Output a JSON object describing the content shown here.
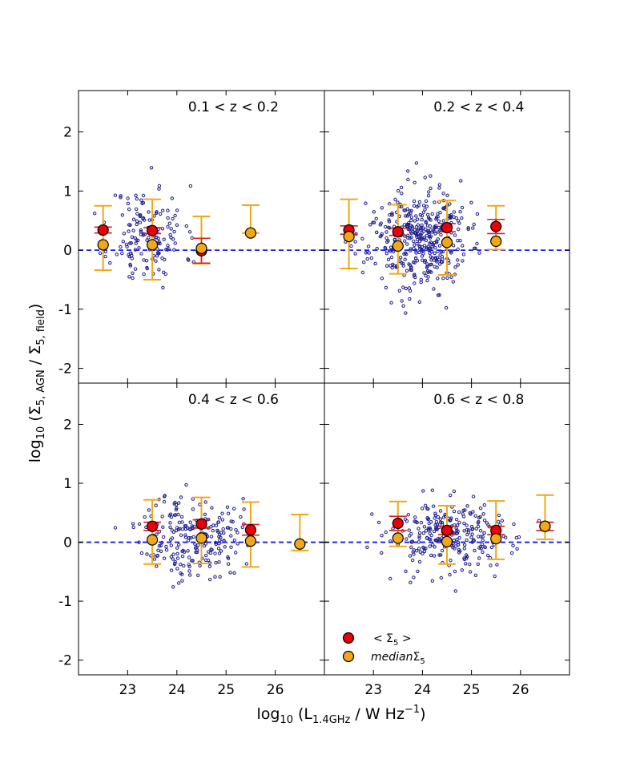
{
  "chart_data": {
    "type": "scatter",
    "layout": "2x2 panels, shared axes",
    "xlabel": {
      "main": "log",
      "sub1": "10",
      "open": " (L",
      "sub2": "1.4GHz",
      "unit": " / W Hz",
      "sup": "−1",
      "close": ")"
    },
    "ylabel": {
      "main": "log",
      "sub1": "10",
      "open": " (Σ",
      "sub2": "5, AGN",
      "mid": " / Σ",
      "sub3": "5, field",
      "close": ")"
    },
    "xlim": [
      22.0,
      27.0
    ],
    "ylim": [
      -2.25,
      2.7
    ],
    "xticks": [
      23,
      24,
      25,
      26
    ],
    "xtick_labels": [
      "23",
      "24",
      "25",
      "26"
    ],
    "yticks": [
      -2,
      -1,
      0,
      1,
      2
    ],
    "ytick_labels": [
      "-2",
      "-1",
      "0",
      "1",
      "2"
    ],
    "reference_line": {
      "y": 0,
      "style": "dashed",
      "color": "#1a1aff"
    },
    "colors": {
      "galaxies": "#1c1c8c",
      "mean": "#e8000b",
      "mean_err": "#d62020",
      "median": "#f0a818",
      "median_err": "#f0a818",
      "ref_line": "#1a1aff"
    },
    "legend": {
      "placement": "lower-left of bottom-right panel",
      "mean": {
        "open": "< Σ",
        "sub": "5",
        "close": " >"
      },
      "median": {
        "italic": "median",
        "sym": "Σ",
        "sub": "5"
      }
    },
    "panels": [
      {
        "title": "0.1  <  z  <  0.2",
        "mean": [
          {
            "x": 22.5,
            "y": 0.34,
            "err": 0.05
          },
          {
            "x": 23.5,
            "y": 0.33,
            "err": 0.05
          },
          {
            "x": 24.5,
            "y": -0.01,
            "err": 0.21
          }
        ],
        "median": [
          {
            "x": 22.5,
            "y": 0.09,
            "lo": -0.34,
            "hi": 0.75
          },
          {
            "x": 23.5,
            "y": 0.09,
            "lo": -0.5,
            "hi": 0.86
          },
          {
            "x": 24.5,
            "y": 0.03,
            "lo": -0.23,
            "hi": 0.57
          },
          {
            "x": 25.5,
            "y": 0.29,
            "lo": 0.29,
            "hi": 0.76
          }
        ],
        "cloud": {
          "n": 150,
          "cx": 23.4,
          "sx": 0.38,
          "cy": 0.25,
          "sy": 0.42,
          "seed": 11
        }
      },
      {
        "title": "0.2  <  z  <  0.4",
        "mean": [
          {
            "x": 22.5,
            "y": 0.34,
            "err": 0.07
          },
          {
            "x": 23.5,
            "y": 0.31,
            "err": 0.06
          },
          {
            "x": 24.5,
            "y": 0.38,
            "err": 0.07
          },
          {
            "x": 25.5,
            "y": 0.4,
            "err": 0.12
          }
        ],
        "median": [
          {
            "x": 22.5,
            "y": 0.23,
            "lo": -0.31,
            "hi": 0.86
          },
          {
            "x": 23.5,
            "y": 0.07,
            "lo": -0.4,
            "hi": 0.77
          },
          {
            "x": 24.5,
            "y": 0.13,
            "lo": -0.42,
            "hi": 0.84
          },
          {
            "x": 25.5,
            "y": 0.15,
            "lo": 0.01,
            "hi": 0.75
          }
        ],
        "cloud": {
          "n": 420,
          "cx": 23.9,
          "sx": 0.5,
          "cy": 0.18,
          "sy": 0.42,
          "seed": 23
        }
      },
      {
        "title": "0.4  <  z  <  0.6",
        "mean": [
          {
            "x": 23.5,
            "y": 0.27,
            "err": 0.07
          },
          {
            "x": 24.5,
            "y": 0.31,
            "err": 0.07
          },
          {
            "x": 25.5,
            "y": 0.21,
            "err": 0.09
          }
        ],
        "median": [
          {
            "x": 23.5,
            "y": 0.04,
            "lo": -0.37,
            "hi": 0.72
          },
          {
            "x": 24.5,
            "y": 0.07,
            "lo": -0.36,
            "hi": 0.76
          },
          {
            "x": 25.5,
            "y": 0.02,
            "lo": -0.42,
            "hi": 0.68
          },
          {
            "x": 26.5,
            "y": -0.03,
            "lo": -0.14,
            "hi": 0.47
          }
        ],
        "cloud": {
          "n": 230,
          "cx": 24.3,
          "sx": 0.5,
          "cy": 0.1,
          "sy": 0.36,
          "seed": 37
        }
      },
      {
        "title": "0.6  <  z  <  0.8",
        "mean": [
          {
            "x": 23.5,
            "y": 0.32,
            "err": 0.12
          },
          {
            "x": 24.5,
            "y": 0.2,
            "err": 0.07
          },
          {
            "x": 25.5,
            "y": 0.2,
            "err": 0.07
          },
          {
            "x": 26.5,
            "y": 0.27,
            "err": 0.07
          }
        ],
        "median": [
          {
            "x": 23.5,
            "y": 0.07,
            "lo": -0.07,
            "hi": 0.69
          },
          {
            "x": 24.5,
            "y": 0.01,
            "lo": -0.37,
            "hi": 0.62
          },
          {
            "x": 25.5,
            "y": 0.06,
            "lo": -0.29,
            "hi": 0.7
          },
          {
            "x": 26.5,
            "y": 0.27,
            "lo": 0.05,
            "hi": 0.8
          }
        ],
        "cloud": {
          "n": 260,
          "cx": 24.6,
          "sx": 0.65,
          "cy": 0.08,
          "sy": 0.32,
          "seed": 53
        }
      }
    ]
  }
}
